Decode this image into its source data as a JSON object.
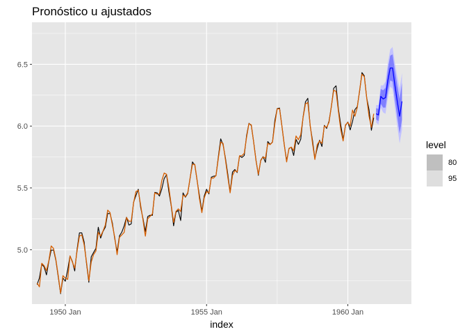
{
  "chart_data": {
    "type": "line",
    "title": "Pronóstico u ajustados",
    "xlabel": "index",
    "ylabel": "",
    "xlim": [
      1948.82,
      1962.25
    ],
    "ylim": [
      4.56,
      6.84
    ],
    "x_ticks": [
      {
        "value": 1950.0,
        "label": "1950 Jan"
      },
      {
        "value": 1955.0,
        "label": "1955 Jan"
      },
      {
        "value": 1960.0,
        "label": "1960 Jan"
      }
    ],
    "y_ticks": [
      {
        "value": 5.0,
        "label": "5.0"
      },
      {
        "value": 5.5,
        "label": "5.5"
      },
      {
        "value": 6.0,
        "label": "6.0"
      },
      {
        "value": 6.5,
        "label": "6.5"
      }
    ],
    "grid": true,
    "colors": {
      "panel": "#e6e6e6",
      "grid": "#ffffff",
      "observed": "#000000",
      "fitted": "#d55e00",
      "forecast": "#0000ff",
      "band_80": "#8080ff",
      "band_95": "#c3c3ff"
    },
    "start_year": 1949,
    "series": [
      {
        "role": "observed",
        "values": [
          4.718,
          4.771,
          4.883,
          4.86,
          4.796,
          4.905,
          4.997,
          4.997,
          4.913,
          4.779,
          4.644,
          4.771,
          4.745,
          4.836,
          4.949,
          4.905,
          4.828,
          5.004,
          5.136,
          5.136,
          5.063,
          4.89,
          4.736,
          4.942,
          4.977,
          5.011,
          5.182,
          5.094,
          5.147,
          5.182,
          5.293,
          5.293,
          5.215,
          5.088,
          4.984,
          5.112,
          5.142,
          5.193,
          5.263,
          5.199,
          5.209,
          5.384,
          5.438,
          5.489,
          5.342,
          5.252,
          5.147,
          5.268,
          5.279,
          5.278,
          5.464,
          5.46,
          5.434,
          5.493,
          5.576,
          5.606,
          5.468,
          5.352,
          5.193,
          5.303,
          5.318,
          5.236,
          5.46,
          5.425,
          5.455,
          5.576,
          5.71,
          5.685,
          5.557,
          5.434,
          5.313,
          5.434,
          5.489,
          5.451,
          5.587,
          5.595,
          5.598,
          5.753,
          5.897,
          5.849,
          5.743,
          5.613,
          5.468,
          5.628,
          5.649,
          5.624,
          5.759,
          5.746,
          5.762,
          5.924,
          6.023,
          6.004,
          5.872,
          5.724,
          5.602,
          5.724,
          5.753,
          5.707,
          5.875,
          5.852,
          5.872,
          6.045,
          6.142,
          6.146,
          6.001,
          5.849,
          5.72,
          5.817,
          5.829,
          5.762,
          5.892,
          5.852,
          5.894,
          6.075,
          6.196,
          6.225,
          6.001,
          5.883,
          5.737,
          5.82,
          5.886,
          5.835,
          6.006,
          5.981,
          6.04,
          6.157,
          6.306,
          6.326,
          6.138,
          6.009,
          5.892,
          6.004,
          6.033,
          5.969,
          6.038,
          6.133,
          6.157,
          6.282,
          6.433,
          6.407,
          6.23,
          6.133,
          5.966,
          6.068
        ]
      },
      {
        "role": "fitted",
        "values": [
          4.73,
          4.7,
          4.89,
          4.87,
          4.83,
          4.91,
          5.03,
          5.01,
          4.92,
          4.79,
          4.65,
          4.79,
          4.77,
          4.76,
          4.95,
          4.9,
          4.85,
          4.99,
          5.11,
          5.12,
          5.04,
          4.9,
          4.75,
          4.9,
          4.96,
          4.99,
          5.14,
          5.11,
          5.15,
          5.2,
          5.32,
          5.3,
          5.2,
          5.1,
          4.96,
          5.1,
          5.12,
          5.14,
          5.26,
          5.23,
          5.23,
          5.38,
          5.47,
          5.48,
          5.36,
          5.24,
          5.11,
          5.25,
          5.27,
          5.29,
          5.46,
          5.45,
          5.45,
          5.56,
          5.62,
          5.61,
          5.5,
          5.36,
          5.22,
          5.31,
          5.33,
          5.31,
          5.44,
          5.43,
          5.46,
          5.58,
          5.69,
          5.69,
          5.56,
          5.41,
          5.3,
          5.42,
          5.47,
          5.46,
          5.58,
          5.58,
          5.6,
          5.74,
          5.87,
          5.86,
          5.73,
          5.59,
          5.46,
          5.6,
          5.64,
          5.63,
          5.76,
          5.76,
          5.78,
          5.91,
          6.02,
          6.01,
          5.87,
          5.72,
          5.61,
          5.72,
          5.75,
          5.74,
          5.86,
          5.85,
          5.87,
          6.02,
          6.14,
          6.14,
          6.0,
          5.85,
          5.71,
          5.82,
          5.83,
          5.8,
          5.92,
          5.89,
          5.93,
          6.07,
          6.18,
          6.19,
          6.01,
          5.86,
          5.73,
          5.85,
          5.88,
          5.86,
          6.0,
          5.99,
          6.03,
          6.16,
          6.29,
          6.28,
          6.12,
          5.97,
          5.88,
          6.01,
          6.03,
          6.0,
          6.13,
          6.08,
          6.15,
          6.29,
          6.42,
          6.4,
          6.23,
          6.08,
          5.99,
          6.1
        ]
      },
      {
        "role": "forecast",
        "values": [
          6.1,
          6.09,
          6.24,
          6.22,
          6.23,
          6.37,
          6.47,
          6.47,
          6.33,
          6.2,
          6.08,
          6.2
        ],
        "lo80": [
          6.055,
          6.04,
          6.18,
          6.15,
          6.15,
          6.28,
          6.37,
          6.36,
          6.21,
          6.07,
          5.94,
          6.05
        ],
        "hi80": [
          6.145,
          6.14,
          6.3,
          6.29,
          6.31,
          6.46,
          6.57,
          6.58,
          6.45,
          6.33,
          6.22,
          6.35
        ],
        "lo95": [
          6.03,
          6.01,
          6.15,
          6.11,
          6.1,
          6.23,
          6.32,
          6.3,
          6.15,
          6.0,
          5.86,
          5.97
        ],
        "hi95": [
          6.17,
          6.17,
          6.33,
          6.33,
          6.36,
          6.51,
          6.62,
          6.64,
          6.51,
          6.4,
          6.3,
          6.43
        ]
      }
    ],
    "legend": {
      "title": "level",
      "placement": "right",
      "items": [
        {
          "label": "80",
          "color": "#bfbfbf"
        },
        {
          "label": "95",
          "color": "#dedede"
        }
      ]
    }
  }
}
